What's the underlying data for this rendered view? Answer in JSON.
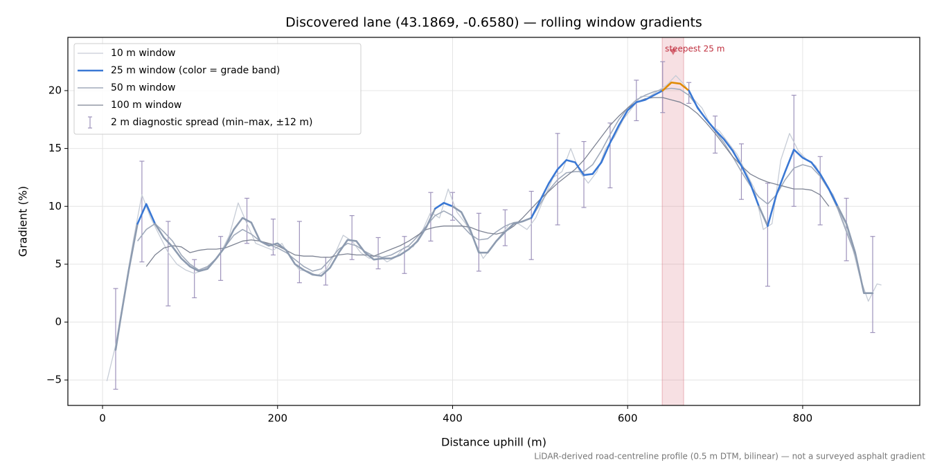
{
  "chart_data": {
    "type": "line",
    "title": "Discovered lane (43.1869, -0.6580) — rolling window gradients",
    "x_label": "Distance uphill (m)",
    "y_label": "Gradient (%)",
    "footnote": "LiDAR-derived road-centreline profile (0.5 m DTM, bilinear) — not a surveyed asphalt gradient",
    "xlim": [
      -39.6,
      933.8
    ],
    "ylim": [
      -7.2,
      24.6
    ],
    "xticks": [
      0,
      200,
      400,
      600,
      800
    ],
    "yticks": [
      {
        "value": -5,
        "label": "−5"
      },
      0,
      5,
      10,
      15,
      20
    ],
    "grid": true,
    "legend": "upper left",
    "series": [
      {
        "name": "10 m window",
        "color": "#c6ccd6",
        "width": 1.3,
        "x": [
          5,
          15,
          25,
          35,
          45,
          55,
          65,
          75,
          85,
          95,
          105,
          115,
          125,
          135,
          145,
          155,
          165,
          175,
          185,
          195,
          205,
          215,
          225,
          235,
          245,
          255,
          265,
          275,
          285,
          295,
          305,
          315,
          325,
          335,
          345,
          355,
          365,
          375,
          385,
          395,
          405,
          415,
          425,
          435,
          445,
          455,
          465,
          475,
          485,
          495,
          505,
          515,
          525,
          535,
          545,
          555,
          565,
          575,
          585,
          595,
          605,
          615,
          625,
          635,
          645,
          655,
          665,
          675,
          685,
          695,
          705,
          715,
          725,
          735,
          745,
          755,
          765,
          775,
          785,
          795,
          805,
          815,
          825,
          835,
          845,
          855,
          865,
          875,
          885,
          890
        ],
        "values": [
          -5.1,
          -2.0,
          2.5,
          7.0,
          11.0,
          9.0,
          7.5,
          6.0,
          5.0,
          4.5,
          4.2,
          4.5,
          5.0,
          6.0,
          7.5,
          10.3,
          8.5,
          6.8,
          6.5,
          6.2,
          6.8,
          5.5,
          4.5,
          4.4,
          4.0,
          4.5,
          5.8,
          7.5,
          7.0,
          6.0,
          5.5,
          5.8,
          5.2,
          5.6,
          6.5,
          6.5,
          7.8,
          9.5,
          9.0,
          11.5,
          9.5,
          8.5,
          7.0,
          5.5,
          6.5,
          7.5,
          8.5,
          8.5,
          8.0,
          9.0,
          10.8,
          12.5,
          13.0,
          15.0,
          13.0,
          12.0,
          13.0,
          15.0,
          16.0,
          17.5,
          18.5,
          19.5,
          19.5,
          20.0,
          20.5,
          21.3,
          20.5,
          19.3,
          18.5,
          17.0,
          16.5,
          15.5,
          14.5,
          13.0,
          11.5,
          8.0,
          8.5,
          14.0,
          16.3,
          14.8,
          14.0,
          13.5,
          12.0,
          11.0,
          9.0,
          7.0,
          4.0,
          1.8,
          3.3,
          3.2
        ]
      },
      {
        "name": "25 m window (color = grade band)",
        "color": "#3a78d4",
        "width": 2.6,
        "band_thresholds": [
          10,
          20
        ],
        "band_colors": [
          "#8d9bb0",
          "#3a78d4",
          "#e08a00"
        ],
        "x": [
          15,
          20,
          30,
          40,
          50,
          60,
          70,
          80,
          90,
          100,
          110,
          120,
          130,
          140,
          150,
          160,
          170,
          180,
          190,
          200,
          210,
          220,
          230,
          240,
          250,
          260,
          270,
          280,
          290,
          300,
          310,
          320,
          330,
          340,
          350,
          360,
          370,
          380,
          390,
          400,
          410,
          420,
          430,
          440,
          450,
          460,
          470,
          480,
          490,
          500,
          510,
          520,
          530,
          540,
          550,
          560,
          570,
          580,
          590,
          600,
          610,
          620,
          630,
          640,
          650,
          660,
          670,
          680,
          690,
          700,
          710,
          720,
          730,
          740,
          750,
          760,
          770,
          780,
          790,
          800,
          810,
          820,
          830,
          840,
          850,
          860,
          870,
          880
        ],
        "values": [
          -2.4,
          0,
          4.5,
          8.5,
          10.2,
          8.5,
          7.3,
          6.5,
          5.5,
          4.8,
          4.4,
          4.6,
          5.5,
          6.5,
          8.0,
          9.0,
          8.6,
          7.0,
          6.6,
          6.8,
          6.2,
          5.0,
          4.5,
          4.1,
          4.0,
          4.7,
          6.0,
          7.1,
          7.0,
          6.0,
          5.4,
          5.5,
          5.5,
          5.8,
          6.3,
          7.0,
          8.2,
          9.8,
          10.3,
          10.0,
          9.5,
          8.0,
          6.0,
          6.0,
          7.0,
          7.8,
          8.5,
          8.7,
          9.0,
          10.5,
          12.0,
          13.2,
          14.0,
          13.8,
          12.7,
          12.8,
          13.8,
          15.5,
          17.0,
          18.3,
          19.0,
          19.2,
          19.6,
          20.0,
          20.7,
          20.6,
          20.0,
          18.5,
          17.5,
          16.6,
          15.8,
          14.8,
          13.5,
          12.0,
          10.0,
          8.3,
          11.0,
          13.0,
          14.9,
          14.2,
          13.8,
          12.8,
          11.5,
          10.0,
          8.5,
          6.0,
          2.5,
          2.5
        ]
      },
      {
        "name": "50 m window",
        "color": "#a0aabb",
        "width": 1.6,
        "x": [
          40,
          50,
          60,
          70,
          80,
          90,
          100,
          110,
          120,
          130,
          140,
          150,
          160,
          170,
          180,
          190,
          200,
          210,
          220,
          230,
          240,
          250,
          260,
          270,
          280,
          290,
          300,
          310,
          320,
          330,
          340,
          350,
          360,
          370,
          380,
          390,
          400,
          410,
          420,
          430,
          440,
          450,
          460,
          470,
          480,
          490,
          500,
          510,
          520,
          530,
          540,
          550,
          560,
          570,
          580,
          590,
          600,
          610,
          620,
          630,
          640,
          650,
          660,
          670,
          680,
          690,
          700,
          710,
          720,
          730,
          740,
          750,
          760,
          770,
          780,
          790,
          800,
          810,
          820,
          830,
          840,
          850,
          860
        ],
        "values": [
          7.0,
          8.0,
          8.5,
          7.8,
          7.0,
          5.8,
          5.0,
          4.5,
          4.8,
          5.5,
          6.5,
          7.5,
          8.0,
          7.6,
          7.0,
          6.7,
          6.4,
          6.0,
          5.4,
          4.8,
          4.4,
          4.6,
          5.4,
          6.3,
          6.8,
          6.6,
          6.1,
          5.7,
          5.6,
          5.8,
          6.2,
          6.6,
          7.4,
          8.3,
          9.2,
          9.6,
          9.2,
          8.4,
          7.6,
          7.1,
          7.2,
          7.8,
          8.3,
          8.6,
          8.7,
          9.0,
          10.2,
          11.4,
          12.3,
          12.9,
          13.0,
          13.0,
          13.6,
          14.8,
          16.2,
          17.5,
          18.5,
          19.2,
          19.6,
          19.9,
          20.1,
          20.2,
          20.1,
          19.6,
          18.6,
          17.5,
          16.5,
          15.5,
          14.3,
          13.0,
          11.8,
          10.8,
          10.2,
          11.0,
          12.3,
          13.3,
          13.6,
          13.4,
          12.6,
          11.4,
          9.8,
          7.8,
          5.8
        ]
      },
      {
        "name": "100 m window",
        "color": "#7c8292",
        "width": 1.3,
        "x": [
          50,
          60,
          70,
          80,
          90,
          100,
          110,
          120,
          130,
          140,
          150,
          160,
          170,
          180,
          190,
          200,
          210,
          220,
          230,
          240,
          250,
          260,
          270,
          280,
          290,
          300,
          310,
          320,
          330,
          340,
          350,
          360,
          370,
          380,
          390,
          400,
          410,
          420,
          430,
          440,
          450,
          460,
          470,
          480,
          490,
          500,
          510,
          520,
          530,
          540,
          550,
          560,
          570,
          580,
          590,
          600,
          610,
          620,
          630,
          640,
          650,
          660,
          670,
          680,
          690,
          700,
          710,
          720,
          730,
          740,
          750,
          760,
          770,
          780,
          790,
          800,
          810,
          820,
          830
        ],
        "values": [
          4.8,
          5.8,
          6.4,
          6.6,
          6.5,
          6.0,
          6.2,
          6.3,
          6.3,
          6.4,
          6.7,
          7.0,
          7.1,
          7.0,
          6.8,
          6.6,
          6.2,
          5.8,
          5.7,
          5.7,
          5.6,
          5.6,
          5.8,
          5.9,
          5.8,
          5.8,
          5.7,
          6.0,
          6.3,
          6.6,
          7.0,
          7.5,
          8.0,
          8.2,
          8.3,
          8.3,
          8.3,
          8.2,
          7.9,
          7.7,
          7.6,
          7.8,
          8.3,
          9.0,
          9.8,
          10.6,
          11.3,
          12.0,
          12.6,
          13.2,
          14.0,
          15.0,
          16.0,
          17.0,
          17.8,
          18.5,
          19.0,
          19.3,
          19.4,
          19.4,
          19.2,
          19.0,
          18.6,
          18.0,
          17.2,
          16.3,
          15.3,
          14.3,
          13.5,
          12.8,
          12.4,
          12.1,
          11.9,
          11.7,
          11.5,
          11.5,
          11.4,
          11.0,
          10.0
        ]
      }
    ],
    "error_bars": {
      "name": "2 m diagnostic spread (min–max, ±12 m)",
      "color": "#9d92bb",
      "x": [
        15,
        45,
        75,
        105,
        135,
        165,
        195,
        225,
        255,
        285,
        315,
        345,
        375,
        400,
        430,
        460,
        490,
        520,
        550,
        580,
        610,
        640,
        670,
        700,
        730,
        760,
        790,
        820,
        850,
        880
      ],
      "low": [
        -5.8,
        5.2,
        1.4,
        2.1,
        3.6,
        6.8,
        5.8,
        3.4,
        3.2,
        5.4,
        4.6,
        4.2,
        7.0,
        8.8,
        4.4,
        6.6,
        5.4,
        8.4,
        9.9,
        11.6,
        17.4,
        18.1,
        18.9,
        14.6,
        10.6,
        3.1,
        10.0,
        8.4,
        5.3,
        -0.9
      ],
      "high": [
        2.9,
        13.9,
        8.7,
        5.4,
        7.4,
        10.7,
        8.9,
        8.7,
        5.6,
        9.2,
        7.3,
        7.4,
        11.2,
        11.2,
        9.4,
        9.7,
        11.3,
        16.3,
        15.6,
        17.2,
        20.9,
        22.5,
        20.7,
        17.8,
        15.4,
        12.0,
        19.6,
        14.3,
        10.7,
        7.4
      ]
    },
    "highlight": {
      "x": [
        639.5,
        664
      ],
      "label": "steepest 25 m",
      "marker_x": 652,
      "marker_y": 23.3,
      "color": "#d9737f",
      "text_color": "#c0303f"
    }
  }
}
